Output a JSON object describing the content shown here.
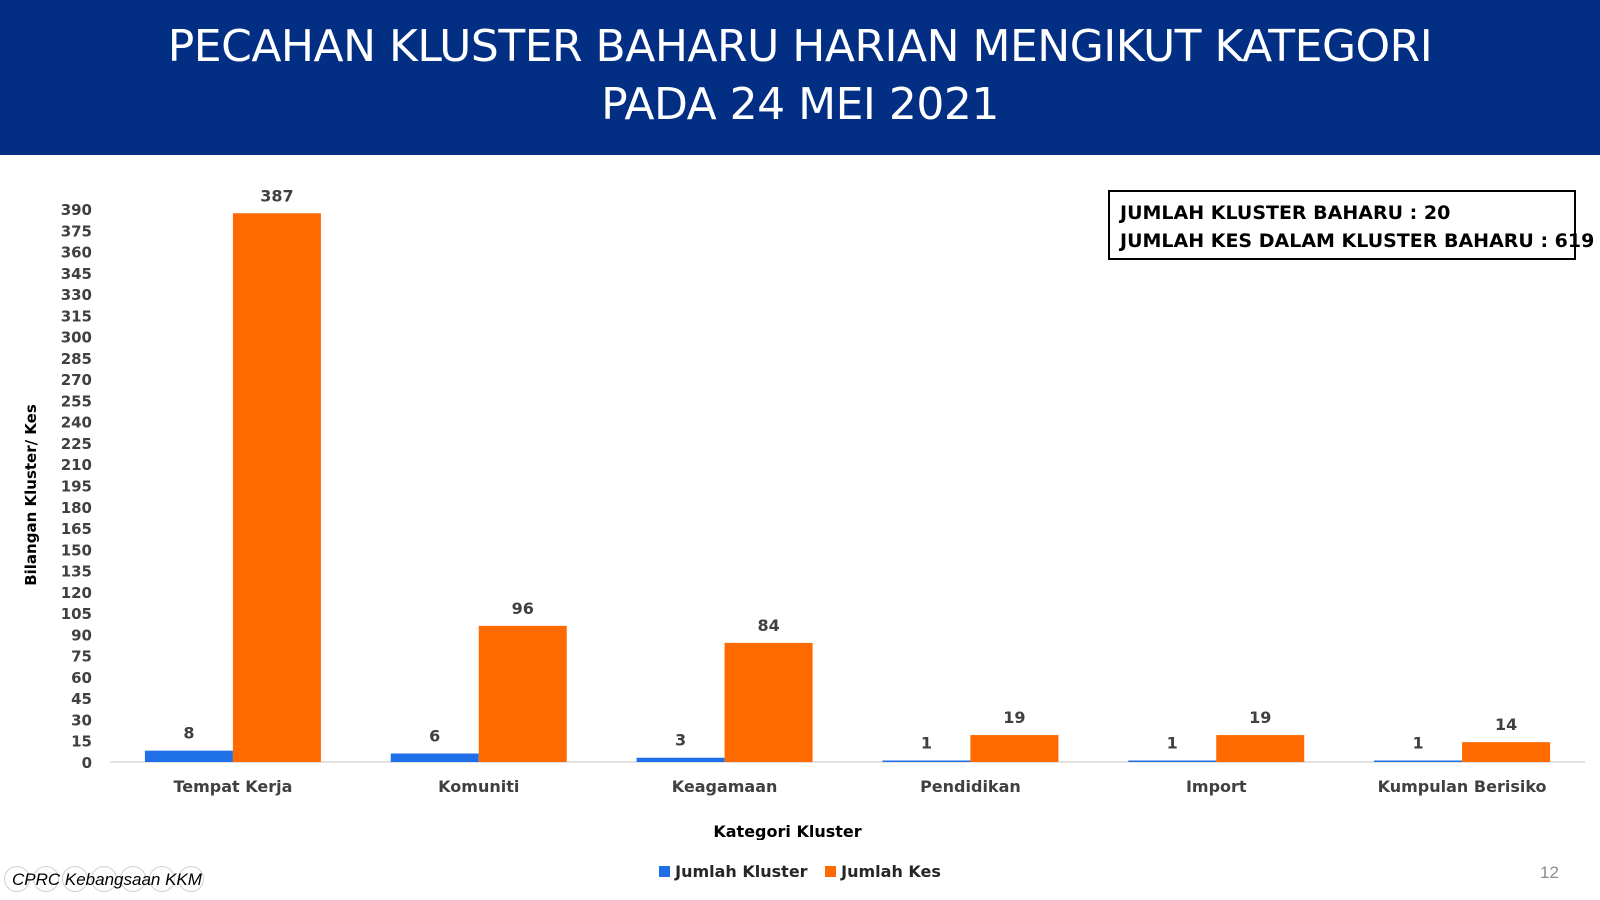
{
  "header": {
    "title_line1": "PECAHAN KLUSTER BAHARU HARIAN MENGIKUT KATEGORI",
    "title_line2": "PADA 24 MEI 2021"
  },
  "summary": {
    "line1": "JUMLAH KLUSTER BAHARU : 20",
    "line2": "JUMLAH KES DALAM KLUSTER BAHARU : 619"
  },
  "chart_data": {
    "type": "bar",
    "categories": [
      "Tempat Kerja",
      "Komuniti",
      "Keagamaan",
      "Pendidikan",
      "Import",
      "Kumpulan Berisiko"
    ],
    "series": [
      {
        "name": "Jumlah Kluster",
        "values": [
          8,
          6,
          3,
          1,
          1,
          1
        ],
        "color": "#1f6fe8"
      },
      {
        "name": "Jumlah Kes",
        "values": [
          387,
          96,
          84,
          19,
          19,
          14
        ],
        "color": "#ff6a00"
      }
    ],
    "xlabel": "Kategori Kluster",
    "ylabel": "Bilangan Kluster/ Kes",
    "ylim": [
      0,
      390
    ],
    "yticks": [
      0,
      15,
      30,
      45,
      60,
      75,
      90,
      105,
      120,
      135,
      150,
      165,
      180,
      195,
      210,
      225,
      240,
      255,
      270,
      285,
      300,
      315,
      330,
      345,
      360,
      375,
      390
    ],
    "grid": false,
    "legend_position": "bottom",
    "data_labels": true
  },
  "footer": {
    "source": "CPRC Kebangsaan KKM",
    "page_number": "12"
  }
}
